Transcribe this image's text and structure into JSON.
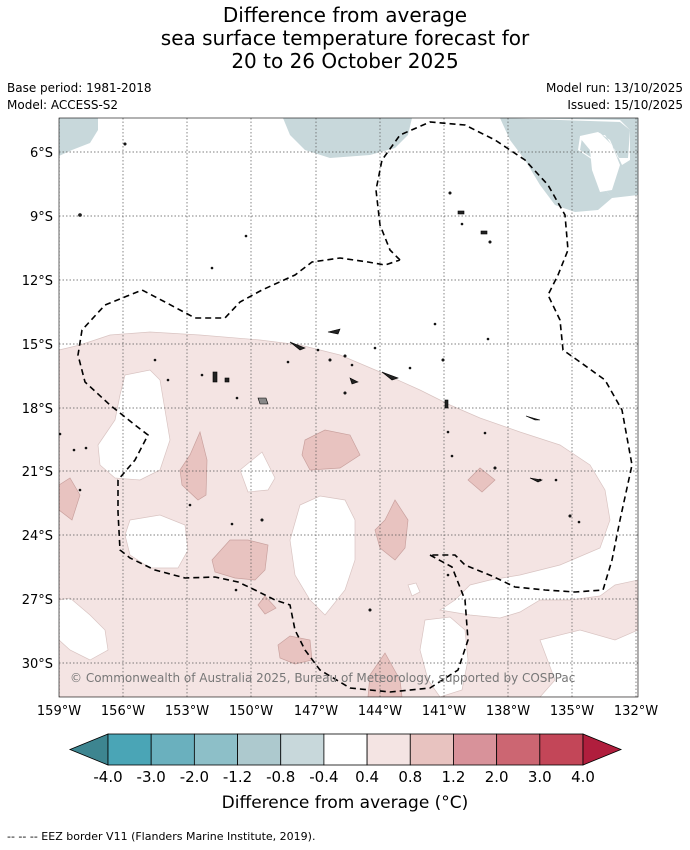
{
  "title": {
    "line1": "Difference from average",
    "line2": "sea surface temperature forecast for",
    "line3": "20 to 26 October 2025"
  },
  "meta": {
    "base_period": "Base period: 1981-2018",
    "model": "Model: ACCESS-S2",
    "model_run": "Model run: 13/10/2025",
    "issued": "Issued: 15/10/2025"
  },
  "map": {
    "lon_range": [
      -159,
      -132
    ],
    "lat_range": [
      -32,
      -4
    ],
    "lat_ticks": [
      "6°S",
      "9°S",
      "12°S",
      "15°S",
      "18°S",
      "21°S",
      "24°S",
      "27°S",
      "30°S"
    ],
    "lon_ticks": [
      "159°W",
      "156°W",
      "153°W",
      "150°W",
      "147°W",
      "144°W",
      "141°W",
      "138°W",
      "135°W",
      "132°W"
    ],
    "copyright": "© Commonwealth of Australia 2025, Bureau of Meteorology, supported by COSPPac"
  },
  "colorbar": {
    "labels": [
      "-4.0",
      "-3.0",
      "-2.0",
      "-1.2",
      "-0.8",
      "-0.4",
      "0.4",
      "0.8",
      "1.2",
      "2.0",
      "3.0",
      "4.0"
    ],
    "colors": [
      "#3d8590",
      "#4aa5b6",
      "#6ab0be",
      "#8dbfc8",
      "#adc9ce",
      "#c8d8db",
      "#ffffff",
      "#f4e4e3",
      "#e8c3c0",
      "#d8929a",
      "#cc6672",
      "#c34658",
      "#b01e3d"
    ],
    "title": "Difference from average (°C)"
  },
  "footer": "--  --  -- EEZ border V11 (Flanders Marine Institute, 2019)."
}
